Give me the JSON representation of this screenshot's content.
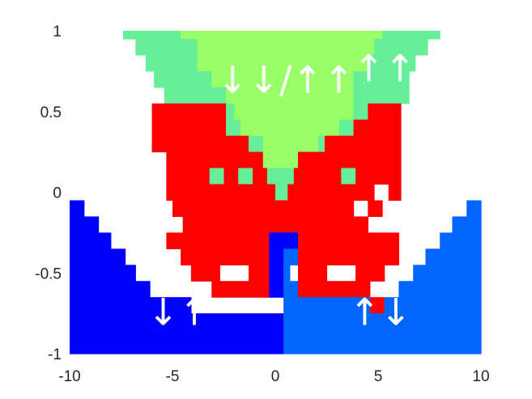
{
  "chart_data": {
    "type": "heatmap",
    "title": "",
    "xlabel": "",
    "ylabel": "",
    "xlim": [
      -10,
      10
    ],
    "ylim": [
      -1,
      1
    ],
    "x_ticks": [
      "-10",
      "-5",
      "0",
      "5",
      "10"
    ],
    "y_ticks": [
      "1",
      "0.5",
      "0",
      "-0.5",
      "-1"
    ],
    "grid": false,
    "legend": "none",
    "palette": {
      "A": "#0000ff",
      "B": "#0066ff",
      "R": "#ff0000",
      "M": "#66ee99",
      "L": "#99ff66"
    },
    "region_labels": [
      {
        "text": "↓↑",
        "x": -4.7,
        "y": -0.76
      },
      {
        "text": "↑↓",
        "x": 5.1,
        "y": -0.76
      },
      {
        "text": "↓↓/↑↑",
        "x": 0.5,
        "y": 0.68
      },
      {
        "text": "↑↑",
        "x": 5.3,
        "y": 0.75
      }
    ],
    "cells": [
      {
        "y": 1.0,
        "segments": [
          [
            "M",
            -7.4,
            -4.6
          ],
          [
            "L",
            -4.6,
            5.2
          ],
          [
            "M",
            5.2,
            8.0
          ]
        ]
      },
      {
        "y": 0.9,
        "segments": [
          [
            "M",
            -6.8,
            -3.8
          ],
          [
            "L",
            -3.8,
            4.8
          ],
          [
            "M",
            4.8,
            7.4
          ]
        ]
      },
      {
        "y": 0.8,
        "segments": [
          [
            "M",
            -6.3,
            -3.8
          ],
          [
            "L",
            -3.8,
            4.5
          ],
          [
            "M",
            4.5,
            6.8
          ]
        ]
      },
      {
        "y": 0.7,
        "segments": [
          [
            "M",
            -5.9,
            -3.1
          ],
          [
            "L",
            -3.1,
            3.8
          ],
          [
            "M",
            3.8,
            6.5
          ]
        ]
      },
      {
        "y": 0.6,
        "segments": [
          [
            "M",
            -5.4,
            -2.4
          ],
          [
            "L",
            -2.4,
            3.8
          ],
          [
            "M",
            3.8,
            6.5
          ]
        ]
      },
      {
        "y": 0.5,
        "segments": [
          [
            "R",
            -6.0,
            -2.4
          ],
          [
            "M",
            -2.4,
            -2.0
          ],
          [
            "L",
            -2.0,
            3.8
          ],
          [
            "M",
            3.8,
            4.5
          ],
          [
            "R",
            4.5,
            6.1
          ]
        ]
      },
      {
        "y": 0.4,
        "segments": [
          [
            "R",
            -6.0,
            -2.4
          ],
          [
            "M",
            -2.4,
            -1.7
          ],
          [
            "L",
            -1.7,
            3.1
          ],
          [
            "M",
            3.1,
            3.8
          ],
          [
            "R",
            3.8,
            6.1
          ]
        ]
      },
      {
        "y": 0.3,
        "segments": [
          [
            "R",
            -6.0,
            -1.3
          ],
          [
            "M",
            -1.3,
            -0.6
          ],
          [
            "L",
            -0.6,
            2.1
          ],
          [
            "M",
            2.1,
            2.4
          ],
          [
            "R",
            2.4,
            6.1
          ]
        ]
      },
      {
        "y": 0.2,
        "segments": [
          [
            "R",
            -5.3,
            -0.6
          ],
          [
            "L",
            -0.6,
            1.1
          ],
          [
            "R",
            1.1,
            6.1
          ]
        ]
      },
      {
        "y": 0.1,
        "segments": [
          [
            "R",
            -5.3,
            -3.2
          ],
          [
            "M",
            -3.2,
            -2.5
          ],
          [
            "R",
            -2.5,
            -1.8
          ],
          [
            "M",
            -1.8,
            -1.1
          ],
          [
            "R",
            -1.1,
            -0.4
          ],
          [
            "M",
            -0.4,
            0.9
          ],
          [
            "R",
            0.9,
            3.2
          ],
          [
            "M",
            3.2,
            3.9
          ],
          [
            "R",
            3.9,
            6.1
          ]
        ]
      },
      {
        "y": 0.0,
        "segments": [
          [
            "R",
            -5.3,
            0.0
          ],
          [
            "M",
            0.0,
            0.6
          ],
          [
            "R",
            0.6,
            4.8
          ],
          [
            "W",
            4.8,
            5.5
          ],
          [
            "R",
            5.5,
            6.1
          ]
        ]
      },
      {
        "y": -0.1,
        "segments": [
          [
            "A",
            -10.0,
            -9.3
          ],
          [
            "W",
            -9.3,
            -5.0
          ],
          [
            "R",
            -5.0,
            3.8
          ],
          [
            "W",
            3.8,
            4.5
          ],
          [
            "R",
            4.5,
            5.2
          ],
          [
            "W",
            5.2,
            9.3
          ],
          [
            "B",
            9.3,
            10.0
          ]
        ]
      },
      {
        "y": -0.2,
        "segments": [
          [
            "A",
            -10.0,
            -8.6
          ],
          [
            "W",
            -8.6,
            -4.5
          ],
          [
            "R",
            -4.5,
            4.5
          ],
          [
            "W",
            4.5,
            8.6
          ],
          [
            "B",
            8.6,
            10.0
          ]
        ]
      },
      {
        "y": -0.3,
        "segments": [
          [
            "A",
            -10.0,
            -8.0
          ],
          [
            "W",
            -8.0,
            -5.3
          ],
          [
            "R",
            -5.3,
            -0.3
          ],
          [
            "A",
            -0.3,
            1.1
          ],
          [
            "R",
            1.1,
            6.0
          ],
          [
            "W",
            6.0,
            8.0
          ],
          [
            "B",
            8.0,
            10.0
          ]
        ]
      },
      {
        "y": -0.4,
        "segments": [
          [
            "A",
            -10.0,
            -7.3
          ],
          [
            "W",
            -7.3,
            -4.6
          ],
          [
            "R",
            -4.6,
            -0.3
          ],
          [
            "A",
            -0.3,
            0.4
          ],
          [
            "B",
            0.4,
            1.1
          ],
          [
            "R",
            1.1,
            6.0
          ],
          [
            "W",
            6.0,
            7.3
          ],
          [
            "B",
            7.3,
            10.0
          ]
        ]
      },
      {
        "y": -0.5,
        "segments": [
          [
            "A",
            -10.0,
            -6.8
          ],
          [
            "W",
            -6.8,
            -4.1
          ],
          [
            "R",
            -4.1,
            -2.7
          ],
          [
            "W",
            -2.7,
            -1.3
          ],
          [
            "R",
            -1.3,
            -0.3
          ],
          [
            "A",
            -0.3,
            0.4
          ],
          [
            "B",
            0.4,
            0.7
          ],
          [
            "W",
            0.7,
            1.1
          ],
          [
            "R",
            1.1,
            2.5
          ],
          [
            "W",
            2.5,
            3.9
          ],
          [
            "R",
            3.9,
            5.3
          ],
          [
            "W",
            5.3,
            6.7
          ],
          [
            "B",
            6.7,
            10.0
          ]
        ]
      },
      {
        "y": -0.6,
        "segments": [
          [
            "A",
            -10.0,
            -6.1
          ],
          [
            "W",
            -6.1,
            -3.1
          ],
          [
            "R",
            -3.1,
            -0.3
          ],
          [
            "A",
            -0.3,
            0.4
          ],
          [
            "B",
            0.4,
            1.1
          ],
          [
            "R",
            1.1,
            4.6
          ],
          [
            "W",
            4.6,
            6.0
          ],
          [
            "B",
            6.0,
            10.0
          ]
        ]
      },
      {
        "y": -0.7,
        "segments": [
          [
            "A",
            -10.0,
            -4.1
          ],
          [
            "W",
            -4.1,
            0.4
          ],
          [
            "B",
            0.4,
            4.6
          ],
          [
            "R",
            4.6,
            5.3
          ],
          [
            "B",
            5.3,
            10.0
          ]
        ]
      },
      {
        "y": -0.8,
        "segments": [
          [
            "A",
            -10.0,
            0.4
          ],
          [
            "B",
            0.4,
            10.0
          ]
        ]
      },
      {
        "y": -0.9,
        "segments": [
          [
            "A",
            -10.0,
            0.4
          ],
          [
            "B",
            0.4,
            10.0
          ]
        ]
      },
      {
        "y": -1.0,
        "segments": [
          [
            "A",
            -10.0,
            0.4
          ],
          [
            "B",
            0.4,
            10.0
          ]
        ]
      }
    ]
  }
}
